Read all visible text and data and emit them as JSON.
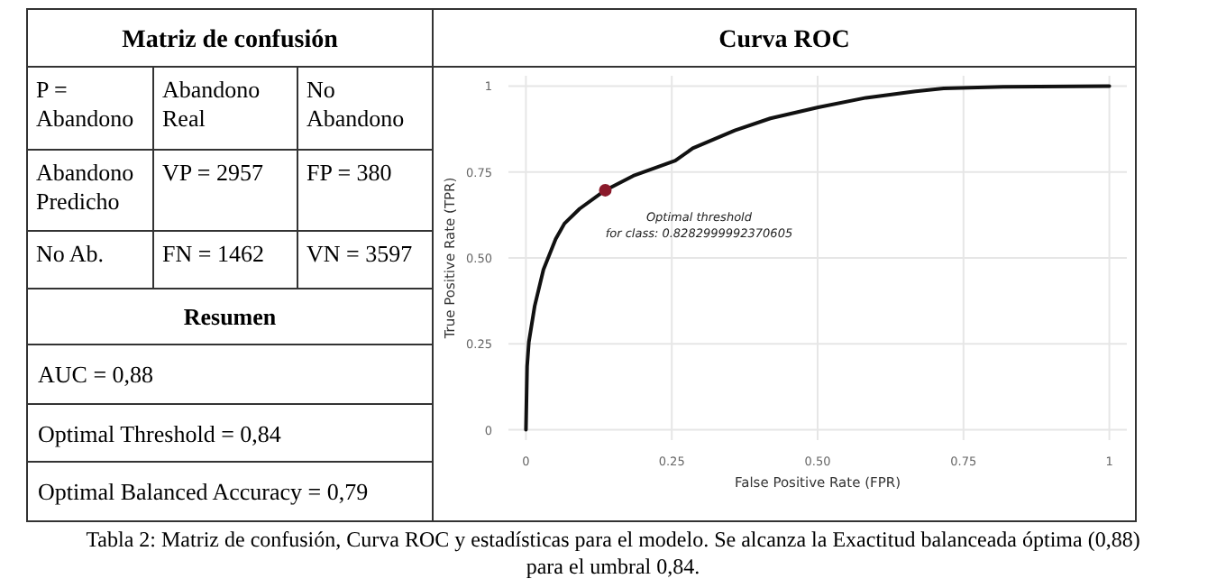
{
  "chart_data": [
    {
      "type": "other",
      "title": "Matriz de confusión",
      "subtitle": "Resumen",
      "annotations": [
        "P = Abandono",
        "Abandono Real",
        "No Abandono",
        "Abandono Predicho",
        "VP = 2957",
        "FP = 380",
        "No Ab.",
        "FN = 1462",
        "VN = 3597",
        "AUC  = 0,88",
        "Optimal Threshold = 0,84",
        "Optimal Balanced Accuracy = 0,79"
      ]
    },
    {
      "type": "line",
      "title": "Curva ROC",
      "xlabel": "False Positive Rate (FPR)",
      "ylabel": "True Positive Rate (TPR)",
      "xlim": [
        -0.03,
        1.03
      ],
      "ylim": [
        -0.03,
        1.03
      ],
      "xticks": [
        0,
        {
          "value": 0.25,
          "label": "0.25"
        },
        {
          "value": 0.5,
          "label": "0.50"
        },
        {
          "value": 0.75,
          "label": "0.75"
        },
        1
      ],
      "yticks": [
        0,
        {
          "value": 0.25,
          "label": "0.25"
        },
        {
          "value": 0.5,
          "label": "0.50"
        },
        {
          "value": 0.75,
          "label": "0.75"
        },
        1
      ],
      "grid": true,
      "marker": "none",
      "line_style": "solid",
      "series": [
        {
          "color": "#111111",
          "x": [
            0,
            0.002,
            0.005,
            0.015,
            0.03,
            0.051,
            0.066,
            0.092,
            0.136,
            0.184,
            0.256,
            0.286,
            0.358,
            0.419,
            0.501,
            0.583,
            0.665,
            0.716,
            0.818,
            1
          ],
          "values": [
            0,
            0.185,
            0.255,
            0.36,
            0.466,
            0.555,
            0.6,
            0.643,
            0.697,
            0.739,
            0.783,
            0.819,
            0.871,
            0.906,
            0.938,
            0.966,
            0.984,
            0.993,
            0.998,
            1
          ]
        },
        {
          "type": "scatter",
          "marker": "circle",
          "color": "#8b1a2b",
          "x": [
            0.136
          ],
          "values": [
            0.697
          ]
        }
      ],
      "annotations": [
        {
          "text": "Optimal threshold\nfor class: 0.8282999992370605",
          "x": 0.136,
          "y": 0.697
        },
        "Tabla 2: Matriz de confusión, Curva ROC y estadísticas para el modelo. Se alcanza la Exactitud balanceada óptima (0,88) para el umbral 0,84."
      ]
    }
  ]
}
